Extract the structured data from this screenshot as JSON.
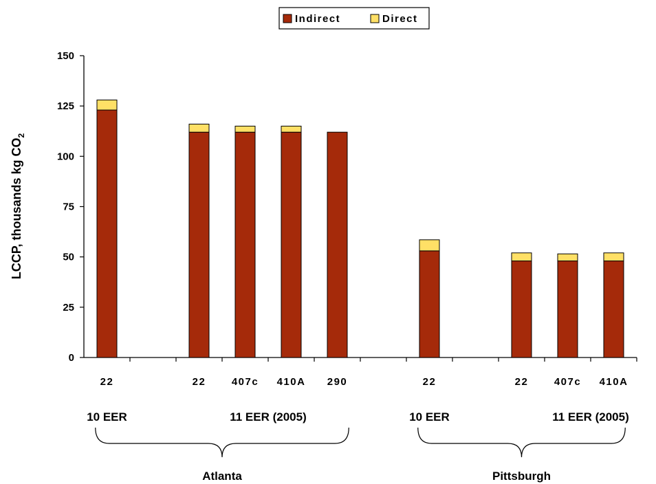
{
  "chart_data": {
    "type": "bar",
    "stacked": true,
    "title": "",
    "ylabel": "LCCP, thousands kg CO",
    "ylabel_subscript": "2",
    "ylim": [
      0,
      150
    ],
    "yticks": [
      "0",
      "25",
      "50",
      "75",
      "100",
      "125",
      "150"
    ],
    "grid": false,
    "legend_position": "top",
    "categories": [
      "22",
      "",
      "22",
      "407c",
      "410A",
      "290",
      "",
      "22",
      "",
      "22",
      "407c",
      "410A"
    ],
    "series": [
      {
        "name": "Indirect",
        "color": "#A52A0A",
        "values": [
          123,
          null,
          112,
          112,
          112,
          112,
          null,
          53,
          null,
          48,
          48,
          48
        ]
      },
      {
        "name": "Direct",
        "color": "#FFE066",
        "values": [
          5,
          null,
          4,
          3,
          3,
          0,
          null,
          5.5,
          null,
          4,
          3.5,
          4
        ]
      }
    ],
    "efficiency_labels": [
      {
        "text": "10 EER",
        "category": 0
      },
      {
        "text": "11 EER (2005)",
        "category": 3.5
      },
      {
        "text": "10 EER",
        "category": 7
      },
      {
        "text": "11 EER (2005)",
        "category": 10.5
      }
    ],
    "cities": [
      {
        "name": "Atlanta",
        "from": 0,
        "to": 5
      },
      {
        "name": "Pittsburgh",
        "from": 7,
        "to": 11
      }
    ]
  }
}
